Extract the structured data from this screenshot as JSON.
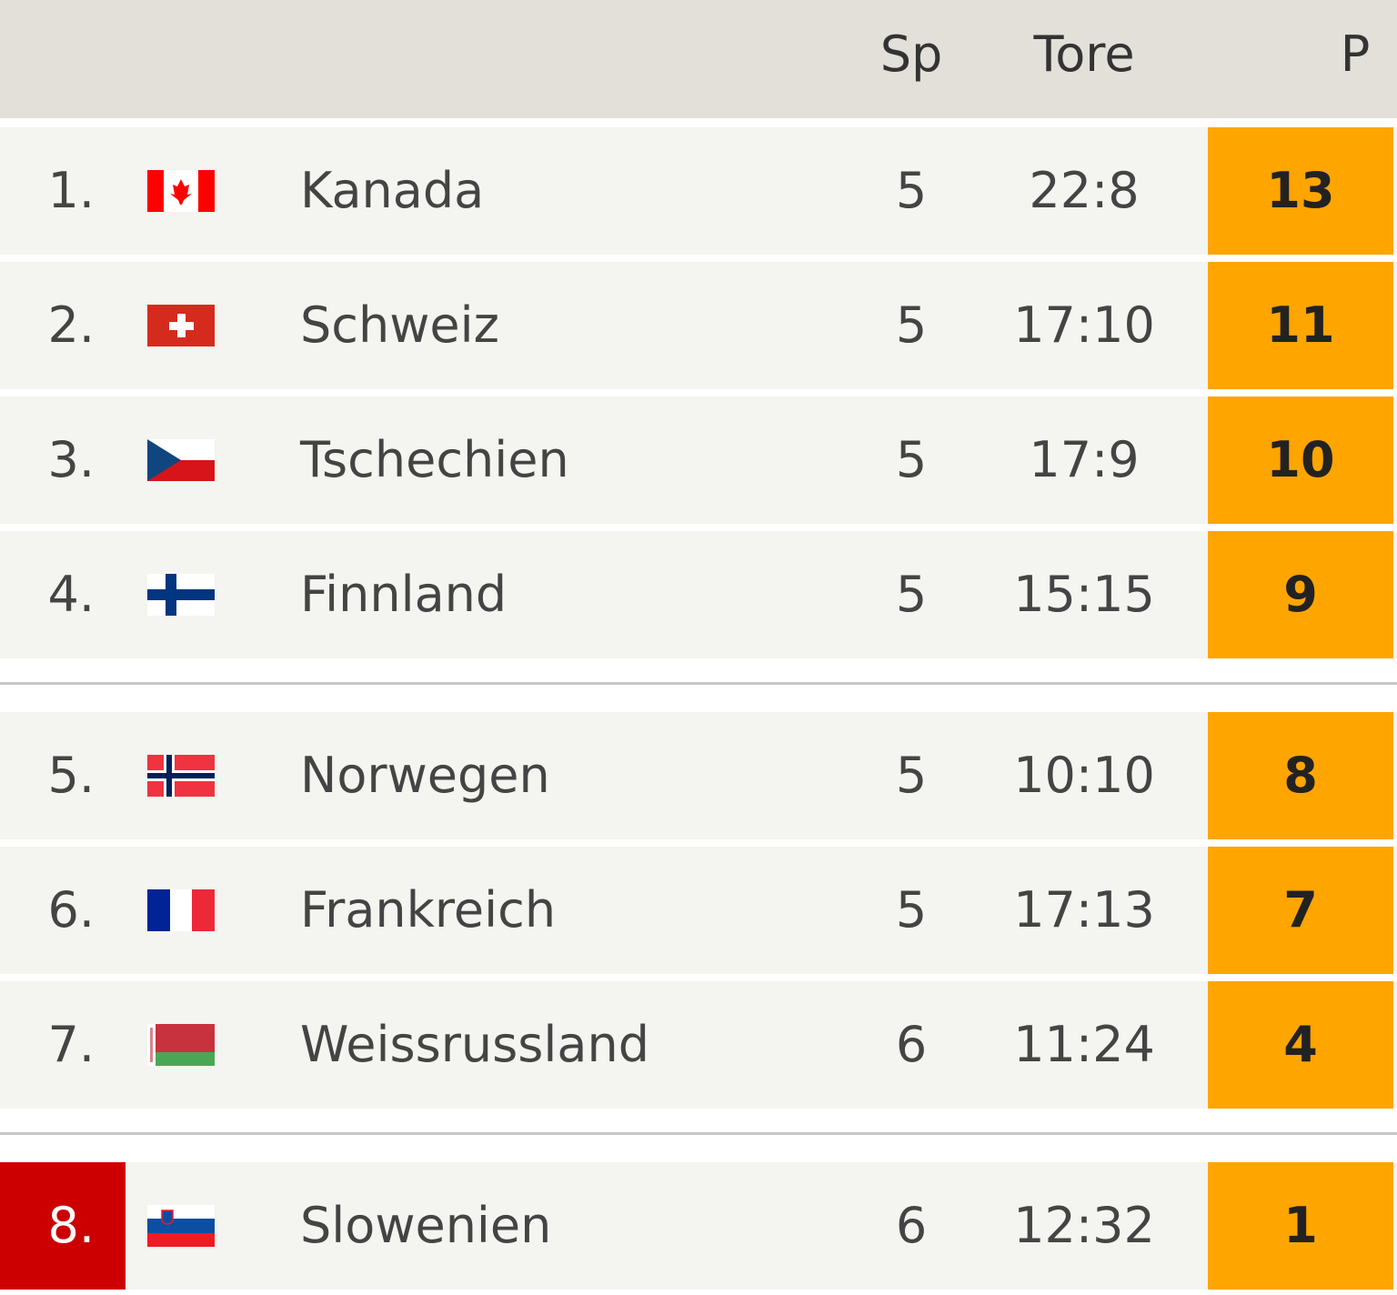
{
  "table": {
    "header": [
      "Sp",
      "Tore",
      "P"
    ],
    "groups": [
      [
        {
          "rank": "1.",
          "team": "Kanada",
          "games": 5,
          "goals": "22:8",
          "points": 13
        },
        {
          "rank": "2.",
          "team": "Schweiz",
          "games": 5,
          "goals": "17:10",
          "points": 11
        },
        {
          "rank": "3.",
          "team": "Tschechien",
          "games": 5,
          "goals": "17:9",
          "points": 10
        },
        {
          "rank": "4.",
          "team": "Finnland",
          "games": 5,
          "goals": "15:15",
          "points": 9
        }
      ],
      [
        {
          "rank": "5.",
          "team": "Norwegen",
          "games": 5,
          "goals": "10:10",
          "points": 8
        },
        {
          "rank": "6.",
          "team": "Frankreich",
          "games": 5,
          "goals": "17:13",
          "points": 7
        },
        {
          "rank": "7.",
          "team": "Weissrussland",
          "games": 6,
          "goals": "11:24",
          "points": 4
        }
      ],
      [
        {
          "rank": "8.",
          "team": "Slowenien",
          "games": 6,
          "goals": "12:32",
          "points": 1
        }
      ]
    ]
  }
}
